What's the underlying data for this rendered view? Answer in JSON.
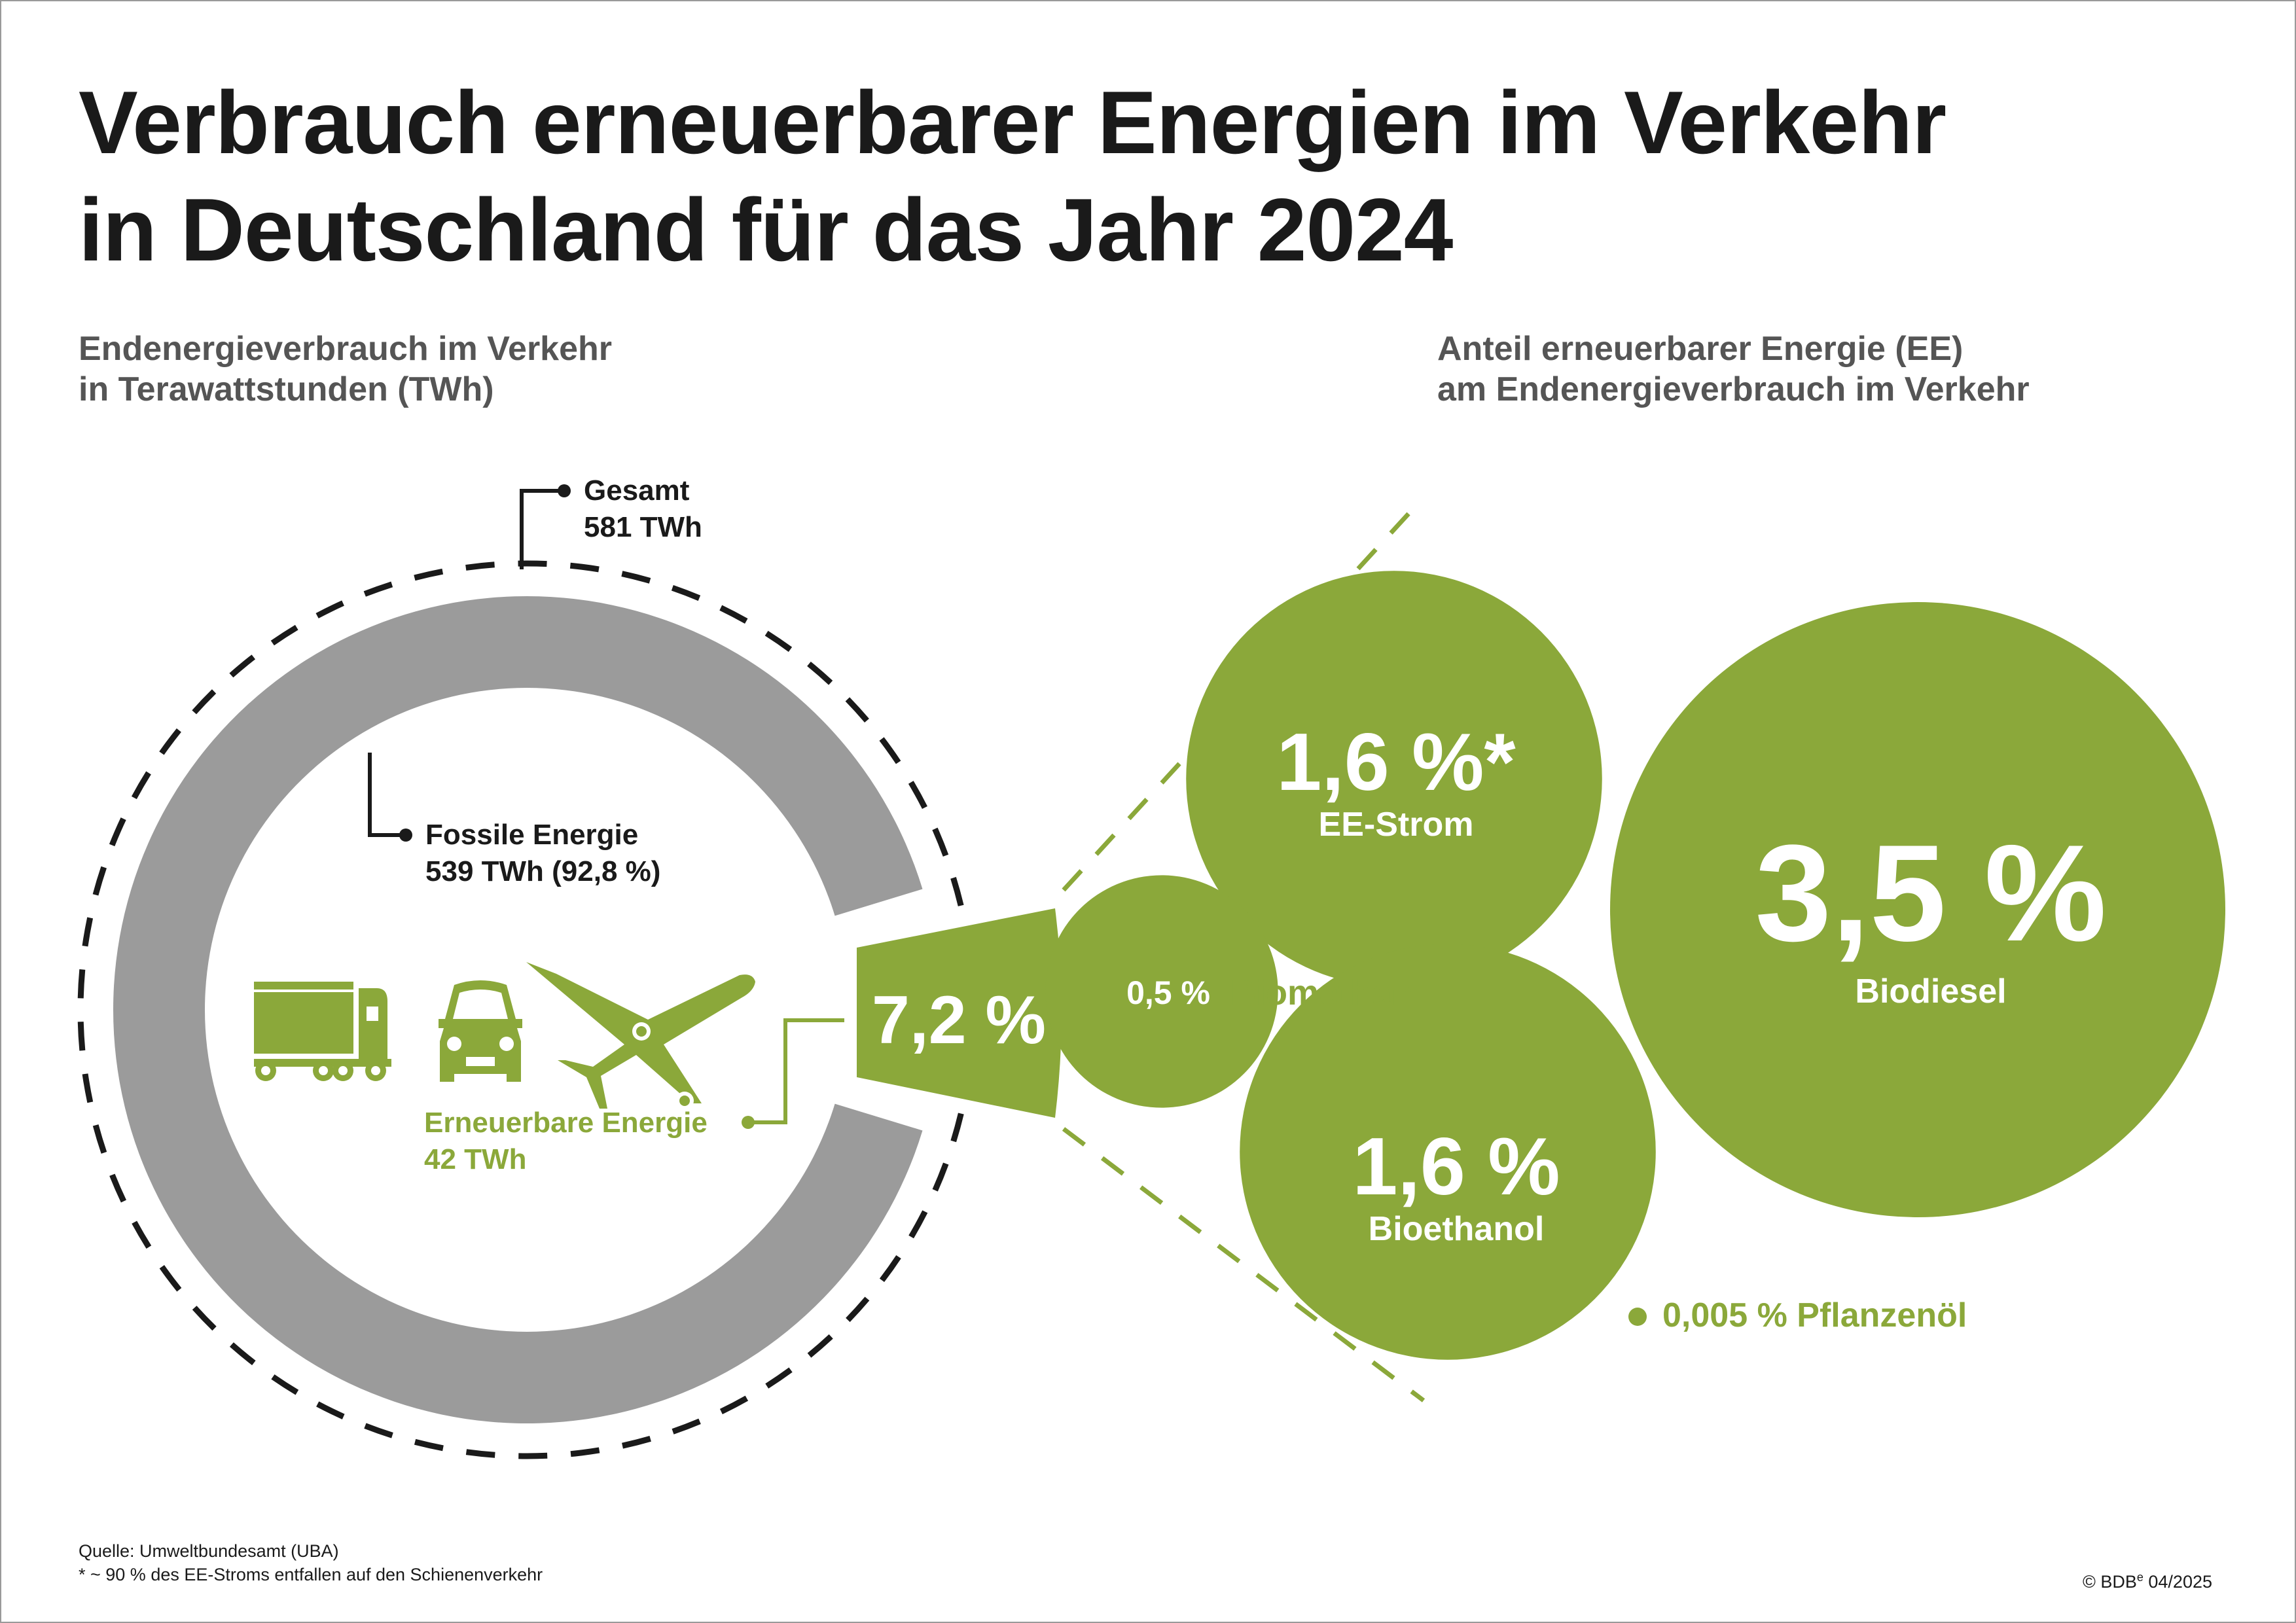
{
  "title": {
    "line1": "Verbrauch erneuerbarer Energien im Verkehr",
    "line2": "in Deutschland für das Jahr 2024"
  },
  "left_subtitle": {
    "line1": "Endenergieverbrauch im Verkehr",
    "line2": "in Terawattstunden (TWh)"
  },
  "right_subtitle": {
    "line1": "Anteil erneuerbarer Energie (EE)",
    "line2": "am Endenergieverbrauch im Verkehr"
  },
  "colors": {
    "green": "#8BA83A",
    "grey": "#9B9B9B",
    "dark": "#1A1A1A"
  },
  "icons": [
    "truck-icon",
    "car-icon",
    "airplane-icon"
  ],
  "chart_data": [
    {
      "type": "pie",
      "title": "Endenergieverbrauch im Verkehr in Terawattstunden (TWh)",
      "total": {
        "label": "Gesamt",
        "value_label": "581 TWh",
        "value": 581
      },
      "slices": [
        {
          "name": "Fossile Energie",
          "value": 539,
          "value_label": "539 TWh (92,8 %)",
          "percent": 92.8
        },
        {
          "name": "Erneuerbare Energie",
          "value": 42,
          "value_label": "42 TWh",
          "percent": 7.2,
          "percent_label": "7,2 %"
        }
      ]
    },
    {
      "type": "bubble",
      "title": "Anteil erneuerbarer Energie (EE) am Endenergieverbrauch im Verkehr",
      "bubbles": [
        {
          "name": "EE-Strom",
          "percent": 1.6,
          "label": "1,6 %*"
        },
        {
          "name": "Biomethan",
          "percent": 0.5,
          "label": "0,5 %"
        },
        {
          "name": "Bioethanol",
          "percent": 1.6,
          "label": "1,6 %"
        },
        {
          "name": "Biodiesel",
          "percent": 3.5,
          "label": "3,5 %"
        },
        {
          "name": "Pflanzenöl",
          "percent": 0.005,
          "label": "0,005 %"
        }
      ]
    }
  ],
  "footer": {
    "source": "Quelle: Umweltbundesamt (UBA)",
    "note": "* ~ 90 % des EE-Stroms entfallen auf den Schienenverkehr",
    "copyright": "© BDB",
    "copyright_sup": "e",
    "date": "04/2025"
  }
}
